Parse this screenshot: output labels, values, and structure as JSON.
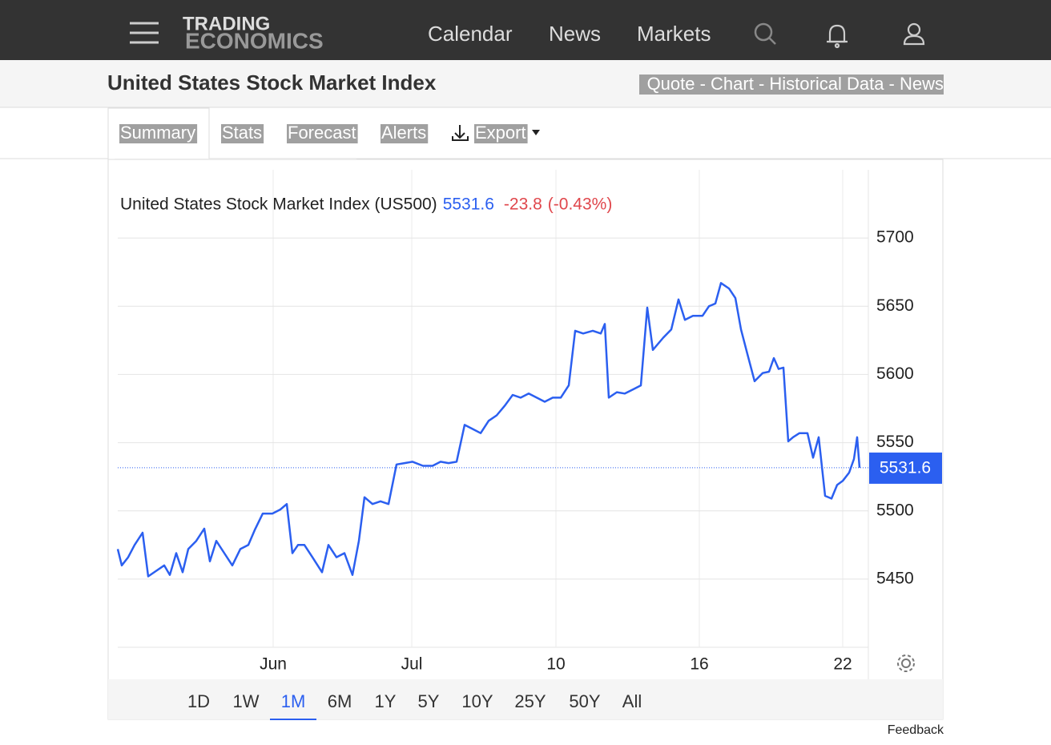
{
  "nav": {
    "logo_top": "TRADING",
    "logo_bottom": "ECONOMICS",
    "items": [
      "Calendar",
      "News",
      "Markets"
    ]
  },
  "header": {
    "title": "United States Stock Market Index",
    "links": "Quote - Chart - Historical Data - News"
  },
  "tabs": [
    "Summary",
    "Stats",
    "Forecast",
    "Alerts",
    "Export"
  ],
  "ranges": [
    "1D",
    "1W",
    "1M",
    "6M",
    "1Y",
    "5Y",
    "10Y",
    "25Y",
    "50Y",
    "All"
  ],
  "selected_range": "1M",
  "feedback": "Feedback",
  "chart_data": {
    "type": "line",
    "title": "United States Stock Market Index (US500)",
    "change": "-23.8",
    "change_percent": "(-0.43%)",
    "color": "#2b5ff0",
    "x": [
      0,
      5,
      13,
      21,
      31,
      38,
      48,
      58,
      65,
      73,
      81,
      88,
      98,
      108,
      115,
      123,
      133,
      143,
      153,
      163,
      171,
      181,
      193,
      203,
      211,
      218,
      225,
      233,
      243,
      255,
      263,
      273,
      283,
      293,
      301,
      308,
      318,
      328,
      338,
      348,
      358,
      368,
      381,
      393,
      403,
      413,
      423,
      433,
      443,
      453,
      463,
      473,
      483,
      493,
      503,
      513,
      523,
      533,
      543,
      553,
      563,
      571,
      581,
      593,
      603,
      608,
      613,
      623,
      633,
      643,
      653,
      661,
      668,
      681,
      691,
      700,
      708,
      718,
      730,
      738,
      746,
      753,
      763,
      771,
      778,
      786,
      795,
      805,
      813,
      819,
      825,
      831,
      837,
      843,
      851,
      861,
      868,
      875,
      883,
      891,
      898,
      905,
      913,
      919,
      923,
      926
    ],
    "values": [
      5472,
      5460,
      5466,
      5475,
      5484,
      5452,
      5456,
      5460,
      5453,
      5469,
      5455,
      5472,
      5478,
      5487,
      5463,
      5478,
      5469,
      5460,
      5472,
      5475,
      5486,
      5498,
      5498,
      5501,
      5505,
      5469,
      5475,
      5475,
      5466,
      5455,
      5475,
      5466,
      5469,
      5453,
      5478,
      5510,
      5505,
      5507,
      5505,
      5534,
      5535,
      5536,
      5533,
      5533,
      5536,
      5535,
      5536,
      5563,
      5560,
      5557,
      5566,
      5570,
      5577,
      5585,
      5583,
      5586,
      5583,
      5580,
      5583,
      5583,
      5592,
      5632,
      5630,
      5632,
      5630,
      5637,
      5583,
      5587,
      5586,
      5589,
      5592,
      5649,
      5618,
      5627,
      5633,
      5655,
      5640,
      5643,
      5643,
      5650,
      5652,
      5667,
      5663,
      5656,
      5633,
      5615,
      5595,
      5601,
      5602,
      5612,
      5604,
      5605,
      5551,
      5554,
      5557,
      5557,
      5539,
      5554,
      5511,
      5509,
      5519,
      5522,
      5528,
      5538,
      5554,
      5531.6
    ],
    "xlim": [
      0,
      937
    ],
    "xticks": [
      {
        "value": 194,
        "label": "Jun"
      },
      {
        "value": 367,
        "label": "Jul"
      },
      {
        "value": 547,
        "label": "10"
      },
      {
        "value": 726,
        "label": "16"
      },
      {
        "value": 905,
        "label": "22"
      }
    ],
    "ylim": [
      5400,
      5750
    ],
    "yticks": [
      5450,
      5500,
      5550,
      5600,
      5650,
      5700
    ],
    "grid": true
  }
}
